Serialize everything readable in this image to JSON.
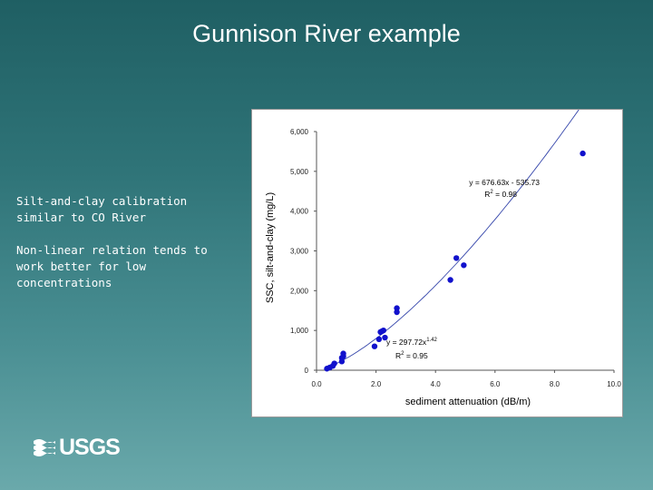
{
  "slide": {
    "title": "Gunnison River example",
    "bullets": [
      "Silt-and-clay calibration similar to CO River",
      "Non-linear relation tends to work better for low concentrations"
    ],
    "logo_text": "USGS"
  },
  "chart_data": {
    "type": "scatter",
    "xlabel": "sediment attenuation (dB/m)",
    "ylabel": "SSC, silt-and-clay (mg/L)",
    "xlim": [
      0,
      10
    ],
    "ylim": [
      0,
      6000
    ],
    "x_ticks": [
      0,
      2,
      4,
      6,
      8,
      10
    ],
    "x_tick_labels": [
      "0.0",
      "2.0",
      "4.0",
      "6.0",
      "8.0",
      "10.0"
    ],
    "y_ticks": [
      0,
      1000,
      2000,
      3000,
      4000,
      5000,
      6000
    ],
    "y_tick_labels": [
      "0",
      "1,000",
      "2,000",
      "3,000",
      "4,000",
      "5,000",
      "6,000"
    ],
    "grid": false,
    "series": [
      {
        "x": [
          0.35,
          0.45,
          0.55,
          0.6,
          0.85,
          0.85,
          0.9,
          0.9,
          1.95,
          2.1,
          2.15,
          2.2,
          2.25,
          2.3,
          2.7,
          2.7,
          4.5,
          4.7,
          4.95,
          8.95
        ],
        "y": [
          40,
          70,
          110,
          170,
          220,
          310,
          350,
          420,
          600,
          780,
          960,
          980,
          1000,
          820,
          1560,
          1460,
          2270,
          2820,
          2640,
          5450
        ]
      }
    ],
    "annotations": [
      {
        "text": "y = 676.63x - 535.73",
        "type": "linear-fit"
      },
      {
        "text_main": "R",
        "sup": "2",
        "text_after": " = 0.98"
      },
      {
        "text_main": "y = 297.72x",
        "sup": "1.42",
        "type": "power-fit"
      },
      {
        "text_main": "R",
        "sup": "2",
        "text_after": " = 0.95"
      }
    ],
    "fits": {
      "power": {
        "a": 297.72,
        "b": 1.42
      },
      "linear": {
        "m": 676.63,
        "c": -535.73
      }
    },
    "colors": {
      "points": "#1111cc",
      "fit_line": "#3344aa"
    }
  }
}
